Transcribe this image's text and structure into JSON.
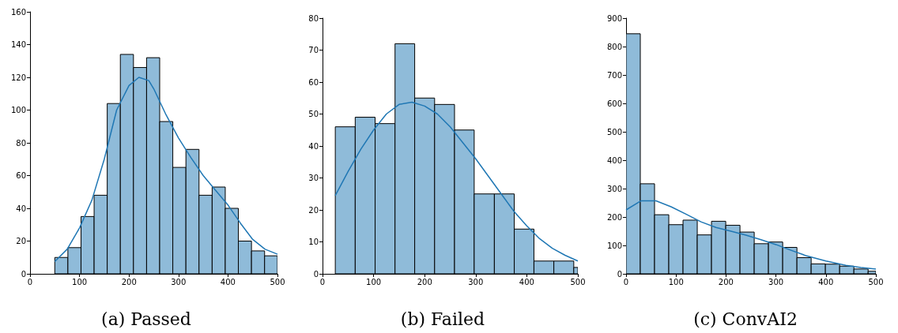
{
  "chart_data": [
    {
      "type": "histogram",
      "title": "(a) Passed",
      "color": "#8fbbd9",
      "bins": [
        50,
        76.5,
        103,
        129.5,
        156,
        182.5,
        209,
        235.5,
        262,
        288.5,
        315,
        341.5,
        368,
        394.5,
        421,
        447.5,
        474,
        500
      ],
      "values": [
        10,
        16,
        35,
        48,
        104,
        134,
        126,
        132,
        93,
        65,
        76,
        48,
        53,
        40,
        20,
        14,
        11
      ],
      "series": [
        {
          "type": "line",
          "color": "#1f77b4",
          "x": [
            50,
            75,
            100,
            125,
            150,
            175,
            200,
            220,
            240,
            250,
            275,
            300,
            325,
            350,
            375,
            400,
            425,
            450,
            475,
            500
          ],
          "values": [
            7.5,
            15,
            28,
            45,
            70,
            100,
            115,
            120,
            118,
            113,
            97,
            83,
            71,
            60,
            51,
            42,
            31,
            21,
            15,
            12
          ]
        }
      ],
      "xlim": [
        0,
        500
      ],
      "xticks": [
        0,
        100,
        200,
        300,
        400,
        500
      ],
      "ylim": [
        0,
        160
      ],
      "yticks": [
        0,
        20,
        40,
        60,
        80,
        100,
        120,
        140,
        160
      ]
    },
    {
      "type": "histogram",
      "title": "(b) Failed",
      "color": "#8fbbd9",
      "bins": [
        25,
        64,
        103,
        142,
        180.5,
        219.5,
        258.5,
        297,
        336.5,
        375.5,
        414,
        453,
        492,
        500
      ],
      "values": [
        46,
        49,
        47,
        72,
        55,
        53,
        45,
        25,
        25,
        14,
        4,
        4,
        2
      ],
      "series": [
        {
          "type": "line",
          "color": "#1f77b4",
          "x": [
            25,
            50,
            75,
            100,
            125,
            150,
            175,
            200,
            225,
            250,
            275,
            300,
            325,
            350,
            375,
            400,
            425,
            450,
            475,
            500
          ],
          "values": [
            24.5,
            32,
            39,
            45,
            50,
            53,
            53.7,
            52.5,
            50,
            46,
            41,
            36,
            30.5,
            25,
            19.5,
            15,
            11,
            8,
            5.8,
            4
          ]
        }
      ],
      "xlim": [
        0,
        500
      ],
      "xticks": [
        0,
        100,
        200,
        300,
        400,
        500
      ],
      "ylim": [
        0,
        80
      ],
      "yticks": [
        0,
        10,
        20,
        30,
        40,
        50,
        60,
        70,
        80
      ]
    },
    {
      "type": "histogram",
      "title": "(c) ConvAI2",
      "color": "#8fbbd9",
      "bins": [
        0,
        28.5,
        57,
        85.5,
        114,
        142.5,
        171,
        199.5,
        228,
        256.5,
        285,
        313.5,
        342,
        370.5,
        399,
        427.5,
        456,
        484.5,
        500
      ],
      "values": [
        845,
        317,
        208,
        173,
        189,
        137,
        185,
        171,
        147,
        106,
        112,
        93,
        57,
        35,
        34,
        27,
        17,
        9
      ],
      "series": [
        {
          "type": "line",
          "color": "#1f77b4",
          "x": [
            0,
            30,
            60,
            90,
            120,
            150,
            180,
            210,
            240,
            270,
            300,
            330,
            360,
            400,
            440,
            470,
            500
          ],
          "values": [
            225,
            257,
            257,
            236,
            210,
            183,
            163,
            150,
            136,
            120,
            103,
            83,
            64,
            45,
            30,
            22,
            17
          ]
        }
      ],
      "xlim": [
        0,
        500
      ],
      "xticks": [
        0,
        100,
        200,
        300,
        400,
        500
      ],
      "ylim": [
        0,
        900
      ],
      "yticks": [
        0,
        100,
        200,
        300,
        400,
        500,
        600,
        700,
        800,
        900
      ]
    }
  ]
}
